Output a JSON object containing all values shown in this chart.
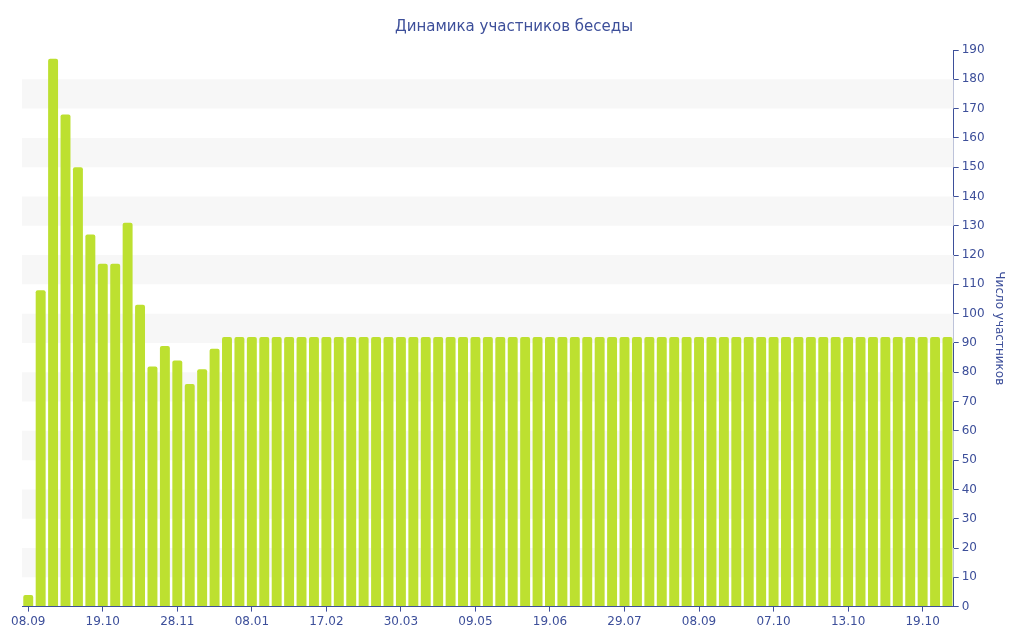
{
  "chart_data": {
    "type": "bar",
    "title": "Динамика участников беседы",
    "y2label": "Число участников",
    "categories": [
      "08.09",
      null,
      null,
      null,
      null,
      null,
      "19.10",
      null,
      null,
      null,
      null,
      null,
      "28.11",
      null,
      null,
      null,
      null,
      null,
      "08.01",
      null,
      null,
      null,
      null,
      null,
      "17.02",
      null,
      null,
      null,
      null,
      null,
      "30.03",
      null,
      null,
      null,
      null,
      null,
      "09.05",
      null,
      null,
      null,
      null,
      null,
      "19.06",
      null,
      null,
      null,
      null,
      null,
      "29.07",
      null,
      null,
      null,
      null,
      null,
      "08.09",
      null,
      null,
      null,
      null,
      null,
      "07.10",
      null,
      null,
      null,
      null,
      null,
      "13.10",
      null,
      null,
      null,
      null,
      null,
      "19.10",
      null,
      null
    ],
    "series": [
      {
        "color": "#bde030",
        "axis": "y2",
        "values": [
          4,
          108,
          187,
          168,
          150,
          127,
          117,
          117,
          131,
          103,
          82,
          89,
          84,
          76,
          81,
          88,
          92,
          92,
          92,
          92,
          92,
          92,
          92,
          92,
          92,
          92,
          92,
          92,
          92,
          92,
          92,
          92,
          92,
          92,
          92,
          92,
          92,
          92,
          92,
          92,
          92,
          92,
          92,
          92,
          92,
          92,
          92,
          92,
          92,
          92,
          92,
          92,
          92,
          92,
          92,
          92,
          92,
          92,
          92,
          92,
          92,
          92,
          92,
          92,
          92,
          92,
          92,
          92,
          92,
          92,
          92,
          92,
          92,
          92,
          92
        ]
      }
    ],
    "y2lim": [
      0,
      190
    ],
    "y2ticks": [
      0,
      10,
      20,
      30,
      40,
      50,
      60,
      70,
      80,
      90,
      100,
      110,
      120,
      130,
      140,
      150,
      160,
      170,
      180,
      190
    ],
    "bands": [
      {
        "axis": "y2",
        "from": 10,
        "to": 20,
        "color": "#f7f7f7"
      },
      {
        "axis": "y2",
        "from": 30,
        "to": 40,
        "color": "#f7f7f7"
      },
      {
        "axis": "y2",
        "from": 50,
        "to": 60,
        "color": "#f7f7f7"
      },
      {
        "axis": "y2",
        "from": 70,
        "to": 80,
        "color": "#f7f7f7"
      },
      {
        "axis": "y2",
        "from": 90,
        "to": 100,
        "color": "#f7f7f7"
      },
      {
        "axis": "y2",
        "from": 110,
        "to": 120,
        "color": "#f7f7f7"
      },
      {
        "axis": "y2",
        "from": 130,
        "to": 140,
        "color": "#f7f7f7"
      },
      {
        "axis": "y2",
        "from": 150,
        "to": 160,
        "color": "#f7f7f7"
      },
      {
        "axis": "y2",
        "from": 170,
        "to": 180,
        "color": "#f7f7f7"
      }
    ],
    "legend": false
  }
}
